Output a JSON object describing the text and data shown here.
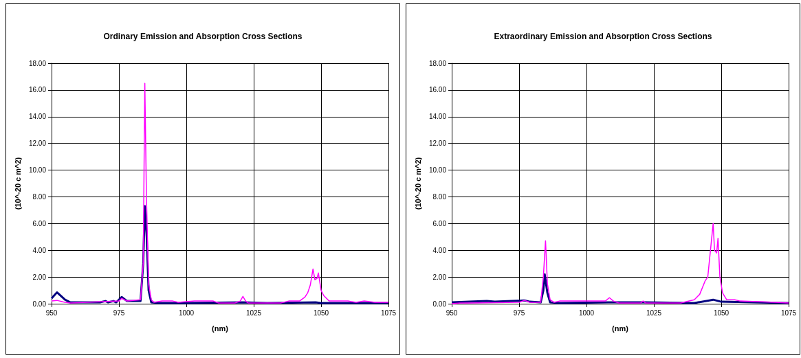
{
  "chart_data": [
    {
      "type": "line",
      "title": "Ordinary Emission and Absorption Cross Sections",
      "xlabel": "(nm)",
      "ylabel": "(10^-20 c m^2)",
      "xlim": [
        950,
        1075
      ],
      "xticks": [
        950,
        975,
        1000,
        1025,
        1050,
        1075
      ],
      "ylim": [
        0,
        18
      ],
      "yticks": [
        {
          "value": 0,
          "label": "0.00"
        },
        {
          "value": 2,
          "label": "2.00"
        },
        {
          "value": 4,
          "label": "4.00"
        },
        {
          "value": 6,
          "label": "6.00"
        },
        {
          "value": 8,
          "label": "8.00"
        },
        {
          "value": 10,
          "label": "10.00"
        },
        {
          "value": 12,
          "label": "12.00"
        },
        {
          "value": 14,
          "label": "14.00"
        },
        {
          "value": 16,
          "label": "16.00"
        },
        {
          "value": 18,
          "label": "18.00"
        }
      ],
      "grid": true,
      "marker": "none",
      "line_style": "solid",
      "series": [
        {
          "color": "#ff00ff",
          "x": [
            950,
            952,
            955,
            957,
            975,
            976,
            978,
            983,
            984,
            984.6,
            985.2,
            986,
            987,
            988,
            991,
            995,
            997,
            1003,
            1010,
            1012,
            1018,
            1020,
            1021,
            1022,
            1023,
            1035,
            1038,
            1042,
            1044,
            1045,
            1046,
            1047,
            1047.7,
            1048.5,
            1049,
            1050,
            1051,
            1053,
            1060,
            1063,
            1066,
            1070,
            1075
          ],
          "values": [
            0.2,
            0.25,
            0.1,
            0.05,
            0.2,
            0.4,
            0.2,
            0.3,
            3,
            16.5,
            8,
            1.5,
            0.3,
            0.1,
            0.2,
            0.2,
            0.1,
            0.2,
            0.2,
            0.05,
            0.05,
            0.2,
            0.55,
            0.2,
            0.05,
            0.05,
            0.2,
            0.2,
            0.5,
            0.8,
            1.4,
            2.6,
            1.8,
            1.9,
            2.3,
            1,
            0.6,
            0.2,
            0.2,
            0.1,
            0.2,
            0.1,
            0.1
          ]
        },
        {
          "color": "#000080",
          "x": [
            950,
            952,
            955,
            957,
            968,
            970,
            971,
            973,
            974,
            976,
            978,
            983,
            984,
            984.6,
            985.3,
            986,
            987,
            990,
            1000,
            1021,
            1030,
            1048,
            1050,
            1075
          ],
          "values": [
            0.4,
            0.85,
            0.3,
            0.1,
            0.1,
            0.2,
            0.1,
            0.2,
            0.1,
            0.5,
            0.2,
            0.2,
            3,
            7.3,
            5,
            1,
            0.1,
            0.05,
            0.05,
            0.1,
            0.05,
            0.1,
            0.05,
            0.05
          ]
        }
      ]
    },
    {
      "type": "line",
      "title": "Extraordinary Emission and Absorption Cross Sections",
      "xlabel": "(nm)",
      "ylabel": "(10^-20 c m^2)",
      "xlim": [
        950,
        1075
      ],
      "xticks": [
        950,
        975,
        1000,
        1025,
        1050,
        1075
      ],
      "ylim": [
        0,
        18
      ],
      "yticks": [
        {
          "value": 0,
          "label": "0.00"
        },
        {
          "value": 2,
          "label": "2.00"
        },
        {
          "value": 4,
          "label": "4.00"
        },
        {
          "value": 6,
          "label": "6.00"
        },
        {
          "value": 8,
          "label": "8.00"
        },
        {
          "value": 10,
          "label": "10.00"
        },
        {
          "value": 12,
          "label": "12.00"
        },
        {
          "value": 14,
          "label": "14.00"
        },
        {
          "value": 16,
          "label": "16.00"
        },
        {
          "value": 18,
          "label": "18.00"
        }
      ],
      "grid": true,
      "marker": "none",
      "line_style": "solid",
      "series": [
        {
          "color": "#ff00ff",
          "x": [
            950,
            953,
            956,
            975,
            977,
            979,
            983,
            984,
            984.8,
            985.5,
            986.5,
            988,
            990,
            1000,
            1007,
            1008.5,
            1010,
            1012,
            1020,
            1021,
            1022,
            1035,
            1037,
            1040,
            1042,
            1044,
            1045,
            1046,
            1047,
            1047.5,
            1048.3,
            1048.8,
            1049.5,
            1050.5,
            1052,
            1055,
            1057,
            1070,
            1075
          ],
          "values": [
            0,
            0.05,
            0.05,
            0.1,
            0.25,
            0.1,
            0.1,
            2,
            4.7,
            1.5,
            0.3,
            0.1,
            0.2,
            0.2,
            0.2,
            0.45,
            0.2,
            0.05,
            0.05,
            0.2,
            0.05,
            0.05,
            0.15,
            0.3,
            0.7,
            1.7,
            2,
            4,
            6,
            4,
            3.8,
            4.9,
            2,
            0.8,
            0.3,
            0.3,
            0.2,
            0.1,
            0.05
          ]
        },
        {
          "color": "#000080",
          "x": [
            950,
            963,
            966,
            977,
            979,
            983,
            984,
            984.5,
            985.5,
            986.5,
            990,
            1008,
            1022,
            1040,
            1047,
            1050,
            1075
          ],
          "values": [
            0.1,
            0.2,
            0.15,
            0.25,
            0.15,
            0.1,
            1,
            2.2,
            0.8,
            0.1,
            0.05,
            0.1,
            0.1,
            0.05,
            0.3,
            0.15,
            0.05
          ]
        }
      ]
    }
  ]
}
